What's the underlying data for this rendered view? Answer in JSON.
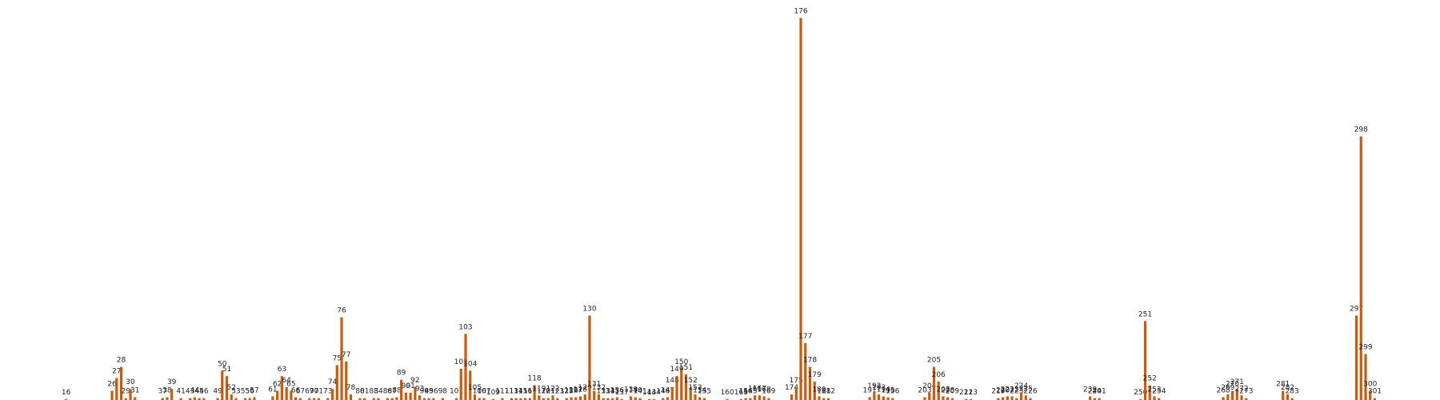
{
  "chart_data": {
    "type": "bar",
    "color": "#cc5a0a",
    "x": [
      16,
      26,
      27,
      28,
      29,
      30,
      31,
      37,
      38,
      39,
      41,
      43,
      44,
      45,
      46,
      49,
      50,
      51,
      52,
      53,
      55,
      56,
      57,
      61,
      62,
      63,
      64,
      65,
      66,
      67,
      69,
      70,
      71,
      73,
      74,
      75,
      76,
      77,
      78,
      80,
      81,
      83,
      84,
      86,
      87,
      88,
      89,
      90,
      91,
      92,
      93,
      94,
      95,
      96,
      98,
      101,
      102,
      103,
      104,
      105,
      106,
      107,
      109,
      111,
      113,
      114,
      115,
      116,
      117,
      118,
      119,
      120,
      121,
      122,
      123,
      125,
      126,
      127,
      128,
      129,
      130,
      131,
      132,
      133,
      134,
      135,
      136,
      137,
      139,
      140,
      141,
      143,
      144,
      146,
      147,
      148,
      149,
      150,
      151,
      152,
      153,
      154,
      155,
      160,
      163,
      164,
      165,
      166,
      167,
      168,
      169,
      174,
      175,
      176,
      177,
      178,
      179,
      180,
      181,
      182,
      191,
      192,
      193,
      194,
      195,
      196,
      203,
      204,
      205,
      206,
      207,
      208,
      209,
      212,
      213,
      219,
      220,
      221,
      222,
      223,
      224,
      225,
      226,
      239,
      240,
      241,
      250,
      251,
      252,
      253,
      254,
      268,
      269,
      270,
      271,
      272,
      273,
      281,
      282,
      283,
      297,
      298,
      299,
      300,
      301
    ],
    "values": [
      1,
      10,
      24,
      36,
      2,
      12,
      3,
      2,
      3,
      12,
      2,
      2,
      3,
      2,
      2,
      2,
      32,
      26,
      6,
      2,
      2,
      2,
      3,
      4,
      10,
      26,
      14,
      10,
      3,
      2,
      2,
      2,
      2,
      2,
      12,
      38,
      90,
      42,
      6,
      2,
      2,
      2,
      2,
      2,
      2,
      3,
      22,
      8,
      8,
      14,
      5,
      2,
      2,
      2,
      2,
      2,
      34,
      72,
      32,
      6,
      2,
      2,
      1,
      2,
      2,
      2,
      2,
      2,
      2,
      16,
      5,
      2,
      2,
      5,
      2,
      2,
      3,
      3,
      4,
      6,
      92,
      10,
      6,
      2,
      2,
      2,
      3,
      1,
      4,
      3,
      2,
      1,
      1,
      2,
      3,
      14,
      26,
      34,
      28,
      14,
      6,
      3,
      2,
      1,
      1,
      2,
      2,
      5,
      5,
      4,
      2,
      6,
      14,
      416,
      62,
      36,
      20,
      4,
      2,
      2,
      3,
      8,
      6,
      4,
      3,
      2,
      3,
      8,
      36,
      20,
      4,
      3,
      2,
      1,
      1,
      2,
      3,
      4,
      4,
      2,
      8,
      5,
      2,
      4,
      2,
      2,
      1,
      86,
      16,
      4,
      2,
      3,
      6,
      10,
      12,
      5,
      2,
      10,
      6,
      2,
      92,
      287,
      50,
      10,
      2
    ]
  }
}
